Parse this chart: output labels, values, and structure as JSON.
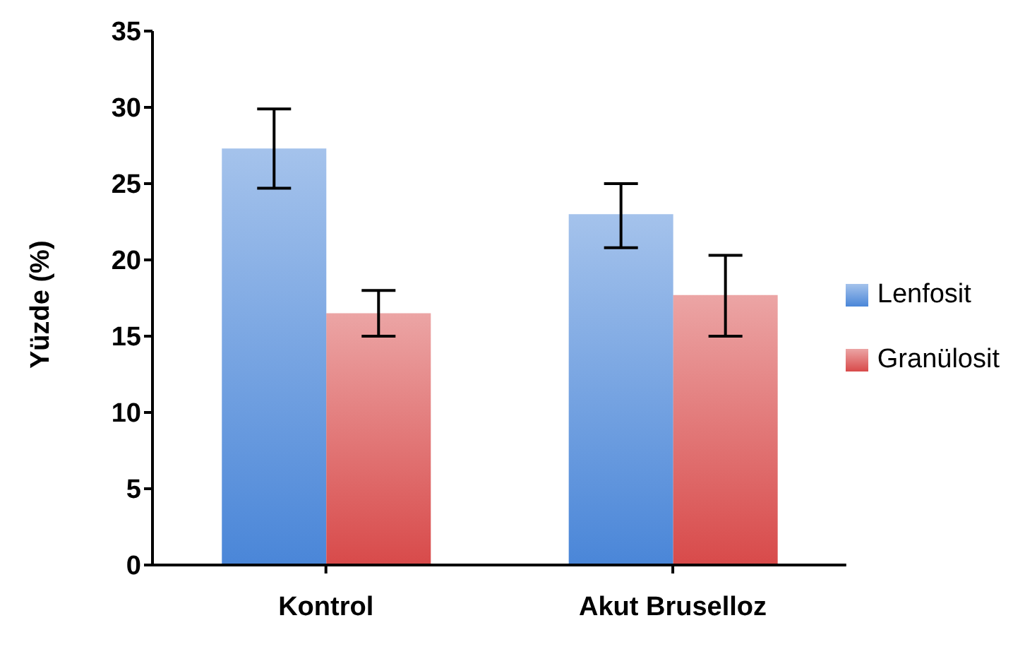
{
  "chart_data": {
    "type": "bar",
    "ylabel": "Yüzde (%)",
    "categories": [
      "Kontrol",
      "Akut Bruselloz"
    ],
    "series": [
      {
        "name": "Lenfosit",
        "color": "#4a86d8",
        "values": [
          27.3,
          23.0
        ],
        "errors": [
          [
            24.7,
            29.9
          ],
          [
            20.8,
            25.0
          ]
        ]
      },
      {
        "name": "Granülosit",
        "color": "#d84a4a",
        "values": [
          16.5,
          17.7
        ],
        "errors": [
          [
            15.0,
            18.0
          ],
          [
            15.0,
            20.3
          ]
        ]
      }
    ],
    "ylim": [
      0,
      35
    ],
    "yticks": [
      0,
      5,
      10,
      15,
      20,
      25,
      30,
      35
    ],
    "grid": false,
    "legend": "right"
  }
}
